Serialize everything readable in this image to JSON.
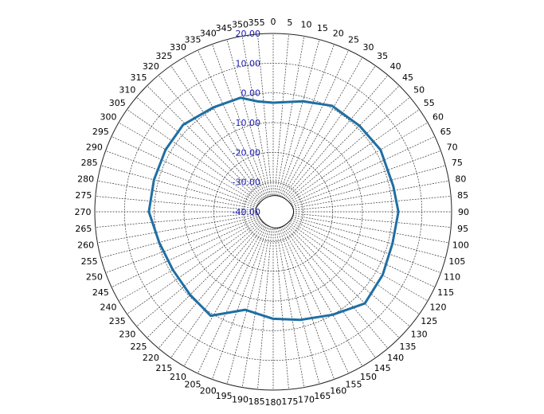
{
  "chart_data": {
    "type": "polar-line",
    "title": "",
    "angle_direction": "clockwise",
    "zero_angle": "top",
    "angle_ticks": [
      0,
      5,
      10,
      15,
      20,
      25,
      30,
      35,
      40,
      45,
      50,
      55,
      60,
      65,
      70,
      75,
      80,
      85,
      90,
      95,
      100,
      105,
      110,
      115,
      120,
      125,
      130,
      135,
      140,
      145,
      150,
      155,
      160,
      165,
      170,
      175,
      180,
      185,
      190,
      195,
      200,
      205,
      210,
      215,
      220,
      225,
      230,
      235,
      240,
      245,
      250,
      255,
      260,
      265,
      270,
      275,
      280,
      285,
      290,
      295,
      300,
      305,
      310,
      315,
      320,
      325,
      330,
      335,
      340,
      345,
      350,
      355
    ],
    "radial_ticks": [
      "-40.00",
      "-30.00",
      "-20.00",
      "-10.00",
      "0.00",
      "10.00",
      "20.00"
    ],
    "radial_range": [
      -40,
      20
    ],
    "grid": true,
    "series": [
      {
        "color": "#1f6fa3",
        "angles": [
          0,
          15,
          29,
          45,
          60,
          78,
          90,
          105,
          120,
          135,
          150,
          166,
          180,
          196,
          211,
          225,
          240,
          255,
          270,
          285,
          300,
          314,
          330,
          344,
          352
        ],
        "values": [
          -3.3,
          -1.5,
          0.8,
          1.0,
          1.7,
          1.3,
          2.1,
          1.5,
          2.5,
          3.6,
          0.0,
          -2.5,
          -4.0,
          -5.7,
          0.8,
          -0.5,
          -1.0,
          -0.3,
          1.8,
          1.5,
          1.8,
          2.1,
          0.5,
          -0.1,
          -2.5
        ]
      }
    ]
  }
}
